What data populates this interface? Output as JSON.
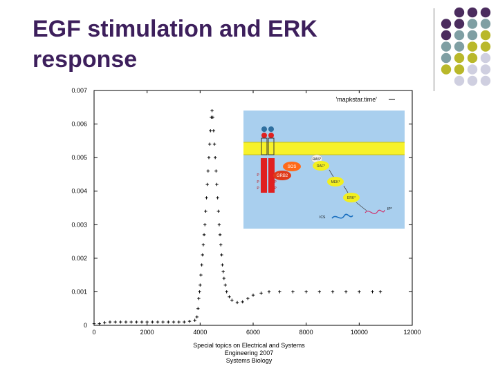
{
  "slide": {
    "title_line1": "EGF stimulation and ERK",
    "title_line2": "response",
    "footer_line1": "Special topics on Electrical and Systems",
    "footer_line2": "Engineering 2007",
    "footer_line3": "Systems Biology"
  },
  "palette": {
    "title_color": "#3d1f5c",
    "dot_purple": "#4b2c5e",
    "dot_teal": "#7f9fa3",
    "dot_olive": "#b9b82a",
    "dot_lavender": "#cfcfe0",
    "inset_background": "#a9cfee",
    "membrane_yellow": "#f7f22a",
    "receptor_red": "#e02020"
  },
  "chart_data": {
    "type": "scatter",
    "title": "",
    "xlabel": "",
    "ylabel": "",
    "xlim": [
      0,
      12000
    ],
    "ylim": [
      0,
      0.007
    ],
    "xticks": [
      "0",
      "2000",
      "4000",
      "6000",
      "8000",
      "10000",
      "12000"
    ],
    "yticks": [
      "0",
      "0.001",
      "0.002",
      "0.003",
      "0.004",
      "0.005",
      "0.006",
      "0.007"
    ],
    "legend": {
      "label": "'mapkstar.time'",
      "position": "top-right"
    },
    "series": [
      {
        "name": "'mapkstar.time'",
        "marker": "plus",
        "points": [
          [
            0,
            5e-05
          ],
          [
            200,
            5e-05
          ],
          [
            400,
            8e-05
          ],
          [
            600,
            0.0001
          ],
          [
            800,
            0.0001
          ],
          [
            1000,
            0.0001
          ],
          [
            1200,
            0.0001
          ],
          [
            1400,
            0.0001
          ],
          [
            1600,
            0.0001
          ],
          [
            1800,
            0.0001
          ],
          [
            2000,
            0.0001
          ],
          [
            2200,
            0.0001
          ],
          [
            2400,
            0.0001
          ],
          [
            2600,
            0.0001
          ],
          [
            2800,
            0.0001
          ],
          [
            3000,
            0.0001
          ],
          [
            3200,
            0.0001
          ],
          [
            3400,
            0.0001
          ],
          [
            3600,
            0.00012
          ],
          [
            3800,
            0.00015
          ],
          [
            3880,
            0.00025
          ],
          [
            3920,
            0.0005
          ],
          [
            3950,
            0.0008
          ],
          [
            3980,
            0.001
          ],
          [
            4000,
            0.0012
          ],
          [
            4030,
            0.0015
          ],
          [
            4060,
            0.0018
          ],
          [
            4090,
            0.0021
          ],
          [
            4120,
            0.0024
          ],
          [
            4150,
            0.0027
          ],
          [
            4180,
            0.003
          ],
          [
            4210,
            0.0034
          ],
          [
            4240,
            0.0038
          ],
          [
            4270,
            0.0042
          ],
          [
            4300,
            0.0046
          ],
          [
            4330,
            0.005
          ],
          [
            4360,
            0.0054
          ],
          [
            4390,
            0.0058
          ],
          [
            4420,
            0.0062
          ],
          [
            4450,
            0.0064
          ],
          [
            4480,
            0.0062
          ],
          [
            4510,
            0.0058
          ],
          [
            4540,
            0.0054
          ],
          [
            4570,
            0.005
          ],
          [
            4600,
            0.0046
          ],
          [
            4630,
            0.0042
          ],
          [
            4660,
            0.0038
          ],
          [
            4690,
            0.0034
          ],
          [
            4720,
            0.003
          ],
          [
            4750,
            0.0027
          ],
          [
            4780,
            0.0024
          ],
          [
            4810,
            0.0021
          ],
          [
            4840,
            0.0018
          ],
          [
            4870,
            0.0016
          ],
          [
            4900,
            0.0014
          ],
          [
            4950,
            0.0012
          ],
          [
            5000,
            0.001
          ],
          [
            5100,
            0.00085
          ],
          [
            5200,
            0.00075
          ],
          [
            5400,
            0.00068
          ],
          [
            5600,
            0.0007
          ],
          [
            5800,
            0.0008
          ],
          [
            6000,
            0.0009
          ],
          [
            6300,
            0.00096
          ],
          [
            6600,
            0.001
          ],
          [
            7000,
            0.001
          ],
          [
            7500,
            0.001
          ],
          [
            8000,
            0.001
          ],
          [
            8500,
            0.001
          ],
          [
            9000,
            0.001
          ],
          [
            9500,
            0.001
          ],
          [
            10000,
            0.001
          ],
          [
            10500,
            0.001
          ],
          [
            10800,
            0.001
          ]
        ]
      }
    ]
  },
  "inset": {
    "labels": {
      "sos": "SOS",
      "grb2": "GRB2",
      "ras": "RAS*",
      "raf": "RAF*",
      "mek": "MEK*",
      "erk": "ERK*",
      "ip": "IP*",
      "ics": "ICS",
      "p": "P"
    }
  }
}
